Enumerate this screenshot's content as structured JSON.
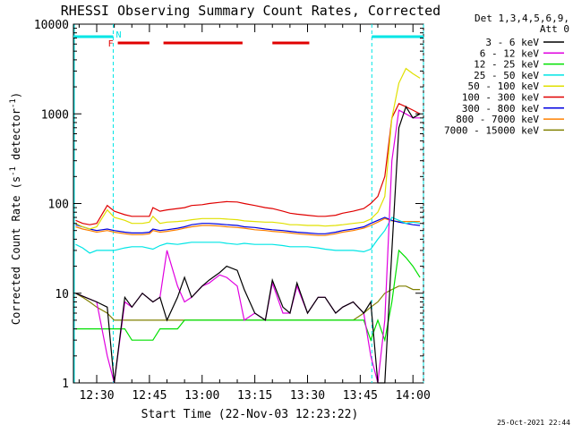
{
  "title": "RHESSI Observing Summary Count Rates, Corrected",
  "footer_date": "25-Oct-2021 22:44",
  "legend": {
    "header_line1": "Det 1,3,4,5,6,9,",
    "header_line2": "Att 0"
  },
  "flags": {
    "flare_label": "F",
    "night_label": "N",
    "night_color": "#00e5e5",
    "flare_color": "#e00000"
  },
  "chart_data": {
    "type": "line",
    "title": "RHESSI Observing Summary Count Rates, Corrected",
    "xlabel": "Start Time (22-Nov-03 12:23:22)",
    "ylabel": "Corrected Count Rate (s⁻¹ detector⁻¹)",
    "ylabel_main": "Corrected Count Rate (s",
    "ylabel_sup1": "-1",
    "ylabel_mid": " detector",
    "ylabel_sup2": "-1",
    "ylabel_end": ")",
    "x_ticks": [
      "12:30",
      "12:45",
      "13:00",
      "13:15",
      "13:30",
      "13:45",
      "14:00"
    ],
    "x_tick_minutes": [
      30,
      45,
      60,
      75,
      90,
      105,
      120
    ],
    "xlim_minutes": [
      23.37,
      123.0
    ],
    "y_scale": "log",
    "ylim": [
      1,
      10000
    ],
    "y_ticks": [
      "1",
      "10",
      "100",
      "1000",
      "10000"
    ],
    "y_tick_values": [
      1,
      10,
      100,
      1000,
      10000
    ],
    "night_intervals_minutes": [
      [
        23.37,
        34.7
      ],
      [
        108.3,
        123.0
      ]
    ],
    "flare_bars_minutes": [
      [
        36.0,
        45.0
      ],
      [
        49.0,
        71.5
      ],
      [
        80.0,
        90.5
      ]
    ],
    "series": [
      {
        "name": "3 - 6 keV",
        "color": "#000000",
        "x": [
          24,
          30,
          33,
          35,
          38,
          40,
          43,
          46,
          48,
          50,
          53,
          55,
          57,
          60,
          62,
          65,
          67,
          70,
          72,
          75,
          78,
          80,
          83,
          85,
          87,
          90,
          93,
          95,
          98,
          100,
          103,
          106,
          108,
          110,
          112,
          114,
          116,
          118,
          120,
          122
        ],
        "y": [
          10,
          8,
          7,
          1,
          9,
          7,
          10,
          8,
          9,
          5,
          9,
          15,
          9,
          12,
          14,
          17,
          20,
          18,
          11,
          6,
          5,
          14,
          7,
          6,
          13,
          6,
          9,
          9,
          6,
          7,
          8,
          6,
          8,
          1,
          1,
          30,
          700,
          1200,
          900,
          1000
        ]
      },
      {
        "name": "6 - 12 keV",
        "color": "#e000e0",
        "x": [
          24,
          30,
          33,
          35,
          38,
          40,
          43,
          46,
          48,
          50,
          53,
          55,
          57,
          60,
          62,
          65,
          67,
          70,
          72,
          75,
          78,
          80,
          83,
          85,
          87,
          90,
          93,
          95,
          98,
          100,
          103,
          106,
          108,
          110,
          112,
          114,
          116,
          118,
          120,
          122
        ],
        "y": [
          10,
          8,
          2,
          1,
          8,
          7,
          10,
          8,
          9,
          30,
          12,
          8,
          9,
          12,
          13,
          16,
          15,
          12,
          5,
          6,
          5,
          13,
          6,
          6,
          12,
          6,
          9,
          9,
          6,
          7,
          8,
          6,
          2,
          1,
          5,
          300,
          1100,
          1000,
          900,
          900
        ]
      },
      {
        "name": "12 - 25 keV",
        "color": "#00e000",
        "x": [
          24,
          30,
          33,
          35,
          38,
          40,
          43,
          46,
          48,
          50,
          53,
          55,
          57,
          60,
          62,
          65,
          67,
          70,
          72,
          75,
          78,
          80,
          83,
          85,
          87,
          90,
          93,
          95,
          98,
          100,
          103,
          106,
          108,
          110,
          112,
          114,
          116,
          118,
          120,
          122
        ],
        "y": [
          4,
          4,
          4,
          4,
          4,
          3,
          3,
          3,
          4,
          4,
          4,
          5,
          5,
          5,
          5,
          5,
          5,
          5,
          5,
          5,
          5,
          5,
          5,
          5,
          5,
          5,
          5,
          5,
          5,
          5,
          5,
          5,
          3,
          5,
          3,
          8,
          30,
          25,
          20,
          15
        ]
      },
      {
        "name": "25 - 50 keV",
        "color": "#00e5e5",
        "x": [
          24,
          26,
          28,
          30,
          33,
          35,
          38,
          40,
          43,
          46,
          48,
          50,
          53,
          55,
          57,
          60,
          62,
          65,
          67,
          70,
          72,
          75,
          78,
          80,
          83,
          85,
          87,
          90,
          93,
          95,
          98,
          100,
          103,
          106,
          108,
          110,
          112,
          114,
          116,
          118,
          120,
          122
        ],
        "y": [
          35,
          32,
          28,
          30,
          30,
          30,
          32,
          33,
          33,
          31,
          34,
          36,
          35,
          36,
          37,
          37,
          37,
          37,
          36,
          35,
          36,
          35,
          35,
          35,
          34,
          33,
          33,
          33,
          32,
          31,
          30,
          30,
          30,
          29,
          31,
          40,
          50,
          70,
          65,
          60,
          62,
          60
        ]
      },
      {
        "name": "50 - 100 keV",
        "color": "#e0e000",
        "x": [
          24,
          26,
          28,
          30,
          33,
          35,
          38,
          40,
          43,
          45,
          46,
          48,
          50,
          53,
          55,
          57,
          60,
          62,
          65,
          67,
          70,
          72,
          75,
          78,
          80,
          83,
          85,
          87,
          90,
          93,
          95,
          98,
          100,
          103,
          106,
          108,
          110,
          112,
          114,
          116,
          118,
          120,
          122
        ],
        "y": [
          60,
          55,
          52,
          55,
          85,
          70,
          65,
          60,
          60,
          62,
          72,
          60,
          62,
          63,
          64,
          66,
          68,
          68,
          68,
          67,
          66,
          64,
          63,
          62,
          62,
          60,
          58,
          58,
          57,
          57,
          56,
          57,
          58,
          60,
          62,
          67,
          80,
          120,
          900,
          2200,
          3200,
          2800,
          2500
        ]
      },
      {
        "name": "100 - 300 keV",
        "color": "#e00000",
        "x": [
          24,
          26,
          28,
          30,
          33,
          35,
          38,
          40,
          43,
          45,
          46,
          48,
          50,
          53,
          55,
          57,
          60,
          62,
          65,
          67,
          70,
          72,
          75,
          78,
          80,
          83,
          85,
          87,
          90,
          93,
          95,
          98,
          100,
          103,
          106,
          108,
          110,
          112,
          114,
          116,
          118,
          120,
          122
        ],
        "y": [
          65,
          60,
          58,
          60,
          95,
          82,
          75,
          72,
          72,
          72,
          90,
          82,
          85,
          88,
          90,
          95,
          97,
          100,
          103,
          105,
          104,
          100,
          95,
          90,
          88,
          82,
          78,
          76,
          74,
          72,
          72,
          74,
          78,
          82,
          88,
          100,
          120,
          200,
          900,
          1300,
          1200,
          1100,
          1000
        ]
      },
      {
        "name": "300 - 800 keV",
        "color": "#0000e0",
        "x": [
          24,
          26,
          28,
          30,
          33,
          35,
          38,
          40,
          43,
          45,
          46,
          48,
          50,
          53,
          55,
          57,
          60,
          62,
          65,
          67,
          70,
          72,
          75,
          78,
          80,
          83,
          85,
          87,
          90,
          93,
          95,
          98,
          100,
          103,
          106,
          108,
          110,
          112,
          114,
          116,
          118,
          120,
          122
        ],
        "y": [
          58,
          55,
          52,
          50,
          52,
          50,
          48,
          47,
          47,
          48,
          52,
          50,
          51,
          53,
          55,
          58,
          60,
          60,
          59,
          58,
          57,
          55,
          54,
          52,
          51,
          50,
          49,
          48,
          47,
          46,
          46,
          48,
          50,
          52,
          55,
          60,
          65,
          70,
          65,
          62,
          60,
          58,
          57
        ]
      },
      {
        "name": "800 - 7000 keV",
        "color": "#ff8000",
        "x": [
          24,
          26,
          28,
          30,
          33,
          35,
          38,
          40,
          43,
          45,
          46,
          48,
          50,
          53,
          55,
          57,
          60,
          62,
          65,
          67,
          70,
          72,
          75,
          78,
          80,
          83,
          85,
          87,
          90,
          93,
          95,
          98,
          100,
          103,
          106,
          108,
          110,
          112,
          114,
          116,
          118,
          120,
          122
        ],
        "y": [
          55,
          52,
          50,
          48,
          50,
          48,
          46,
          45,
          45,
          46,
          50,
          48,
          49,
          51,
          53,
          55,
          57,
          57,
          56,
          55,
          54,
          53,
          51,
          50,
          49,
          48,
          47,
          46,
          45,
          44,
          44,
          46,
          48,
          50,
          53,
          57,
          62,
          68,
          64,
          63,
          63,
          63,
          63
        ]
      },
      {
        "name": "7000 - 15000 keV",
        "color": "#808000",
        "x": [
          24,
          26,
          28,
          30,
          33,
          35,
          38,
          40,
          43,
          45,
          46,
          48,
          50,
          53,
          55,
          57,
          60,
          62,
          65,
          67,
          70,
          72,
          75,
          78,
          80,
          83,
          85,
          87,
          90,
          93,
          95,
          98,
          100,
          103,
          106,
          108,
          110,
          112,
          114,
          116,
          118,
          120,
          122
        ],
        "y": [
          10,
          9,
          8,
          7,
          6,
          5,
          5,
          5,
          5,
          5,
          5,
          5,
          5,
          5,
          5,
          5,
          5,
          5,
          5,
          5,
          5,
          5,
          5,
          5,
          5,
          5,
          5,
          5,
          5,
          5,
          5,
          5,
          5,
          5,
          6,
          7,
          8,
          10,
          11,
          12,
          12,
          11,
          11
        ]
      }
    ]
  }
}
